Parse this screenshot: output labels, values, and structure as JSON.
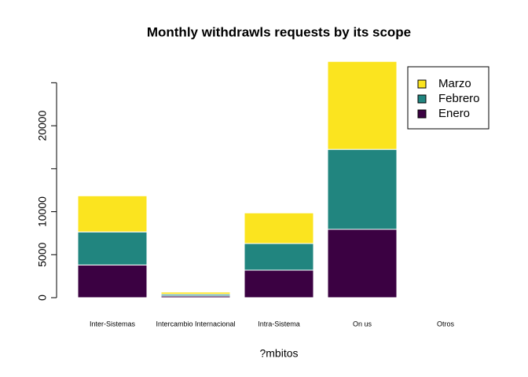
{
  "chart_data": {
    "type": "bar",
    "stacked": true,
    "title": "Monthly withdrawls requests by its scope",
    "x_label": "?mbitos",
    "categories": [
      "Inter-Sistemas",
      "Intercambio Internacional",
      "Intra-Sistema",
      "On us",
      "Otros"
    ],
    "series": [
      {
        "name": "Enero",
        "color": "#3b0142",
        "values": [
          3800,
          200,
          3200,
          7950,
          0
        ]
      },
      {
        "name": "Febrero",
        "color": "#21857f",
        "values": [
          3850,
          200,
          3100,
          9300,
          0
        ]
      },
      {
        "name": "Marzo",
        "color": "#fbe41f",
        "values": [
          4200,
          250,
          3560,
          10230,
          0
        ]
      }
    ],
    "ylim": [
      0,
      27500
    ],
    "yticks": [
      0,
      5000,
      10000,
      20000
    ],
    "yticks_unlabeled": [
      15000,
      25000
    ],
    "legend": "top-right"
  }
}
